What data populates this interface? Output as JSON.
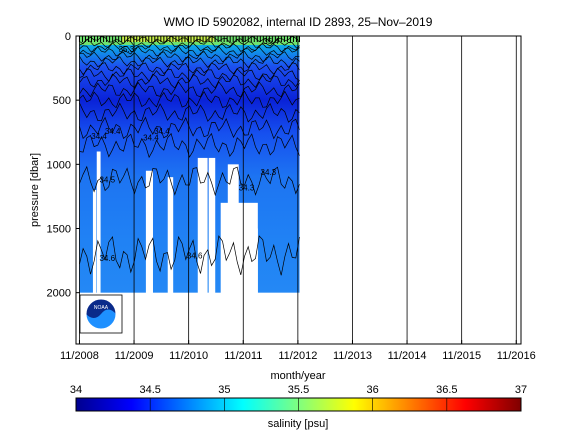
{
  "chart_data": {
    "type": "heatmap",
    "title": "WMO ID 5902082, internal ID 2893, 25–Nov–2019",
    "xlabel": "month/year",
    "ylabel": "pressure [dbar]",
    "x_ticks": [
      "11/2008",
      "11/2009",
      "11/2010",
      "11/2011",
      "11/2012",
      "11/2013",
      "11/2014",
      "11/2015",
      "11/2016"
    ],
    "y_ticks": [
      0,
      500,
      1000,
      1500,
      2000
    ],
    "ylim": [
      2400,
      0
    ],
    "xlim_years": [
      2008.77,
      2016.92
    ],
    "colorbar": {
      "label": "salinity [psu]",
      "ticks": [
        "34",
        "34.5",
        "35",
        "35.5",
        "36",
        "36.5",
        "37"
      ],
      "range": [
        34,
        37
      ],
      "colormap": "jet"
    },
    "data_extent": {
      "start": "11/2008",
      "end": "11/2012",
      "max_pressure": 2000
    },
    "gaps": [
      {
        "start_year": 2009.08,
        "end_year": 2009.14,
        "from_pressure": 1200,
        "to_pressure": 2000
      },
      {
        "start_year": 2009.15,
        "end_year": 2009.22,
        "from_pressure": 900,
        "to_pressure": 2000
      },
      {
        "start_year": 2010.05,
        "end_year": 2010.18,
        "from_pressure": 1050,
        "to_pressure": 2000
      },
      {
        "start_year": 2010.45,
        "end_year": 2010.55,
        "from_pressure": 1100,
        "to_pressure": 2000
      },
      {
        "start_year": 2011.0,
        "end_year": 2011.18,
        "from_pressure": 950,
        "to_pressure": 2000
      },
      {
        "start_year": 2011.2,
        "end_year": 2011.32,
        "from_pressure": 950,
        "to_pressure": 2000
      },
      {
        "start_year": 2011.42,
        "end_year": 2012.1,
        "from_pressure": 1300,
        "to_pressure": 2000
      },
      {
        "start_year": 2011.55,
        "end_year": 2011.75,
        "from_pressure": 1000,
        "to_pressure": 2000
      },
      {
        "start_year": 2011.8,
        "end_year": 2012.1,
        "from_pressure": 1500,
        "to_pressure": 2000
      }
    ],
    "contour_labels": [
      {
        "text": "34.4",
        "year": 2009.05,
        "pressure": 780
      },
      {
        "text": "34.4",
        "year": 2009.3,
        "pressure": 740
      },
      {
        "text": "34.4",
        "year": 2010.0,
        "pressure": 790
      },
      {
        "text": "34.4",
        "year": 2010.2,
        "pressure": 740
      },
      {
        "text": "34.5",
        "year": 2009.2,
        "pressure": 1120
      },
      {
        "text": "34.6",
        "year": 2009.2,
        "pressure": 1730
      },
      {
        "text": "34.6",
        "year": 2010.8,
        "pressure": 1710
      },
      {
        "text": "34.3",
        "year": 2012.15,
        "pressure": 1060
      },
      {
        "text": "34.3",
        "year": 2011.75,
        "pressure": 1180
      },
      {
        "text": "35.3",
        "year": 2009.55,
        "pressure": 100
      },
      {
        "text": "35.4",
        "year": 2012.2,
        "pressure": 40
      }
    ],
    "logo": "noaa-logo"
  }
}
